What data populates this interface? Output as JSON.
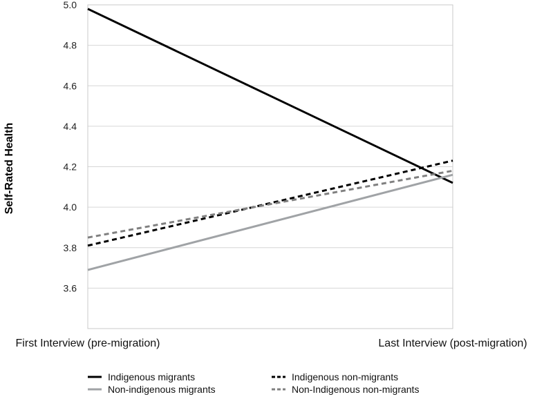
{
  "chart_data": {
    "type": "line",
    "title": "",
    "ylabel": "Self-Rated Health",
    "xlabel": "",
    "categories": [
      "First Interview (pre-migration)",
      "Last Interview (post-migration)"
    ],
    "ylim": [
      3.4,
      5.0
    ],
    "yticks": [
      3.6,
      3.8,
      4.0,
      4.2,
      4.4,
      4.6,
      4.8,
      5.0
    ],
    "grid": true,
    "legend_position": "bottom",
    "series": [
      {
        "name": "Indigenous migrants",
        "values": [
          4.98,
          4.12
        ],
        "color": "#000000",
        "dash": "solid"
      },
      {
        "name": "Indigenous non-migrants",
        "values": [
          3.81,
          4.23
        ],
        "color": "#000000",
        "dash": "dashed"
      },
      {
        "name": "Non-indigenous migrants",
        "values": [
          3.69,
          4.16
        ],
        "color": "#a0a3a6",
        "dash": "solid"
      },
      {
        "name": "Non-Indigenous non-migrants",
        "values": [
          3.85,
          4.18
        ],
        "color": "#808080",
        "dash": "dashed"
      }
    ]
  }
}
